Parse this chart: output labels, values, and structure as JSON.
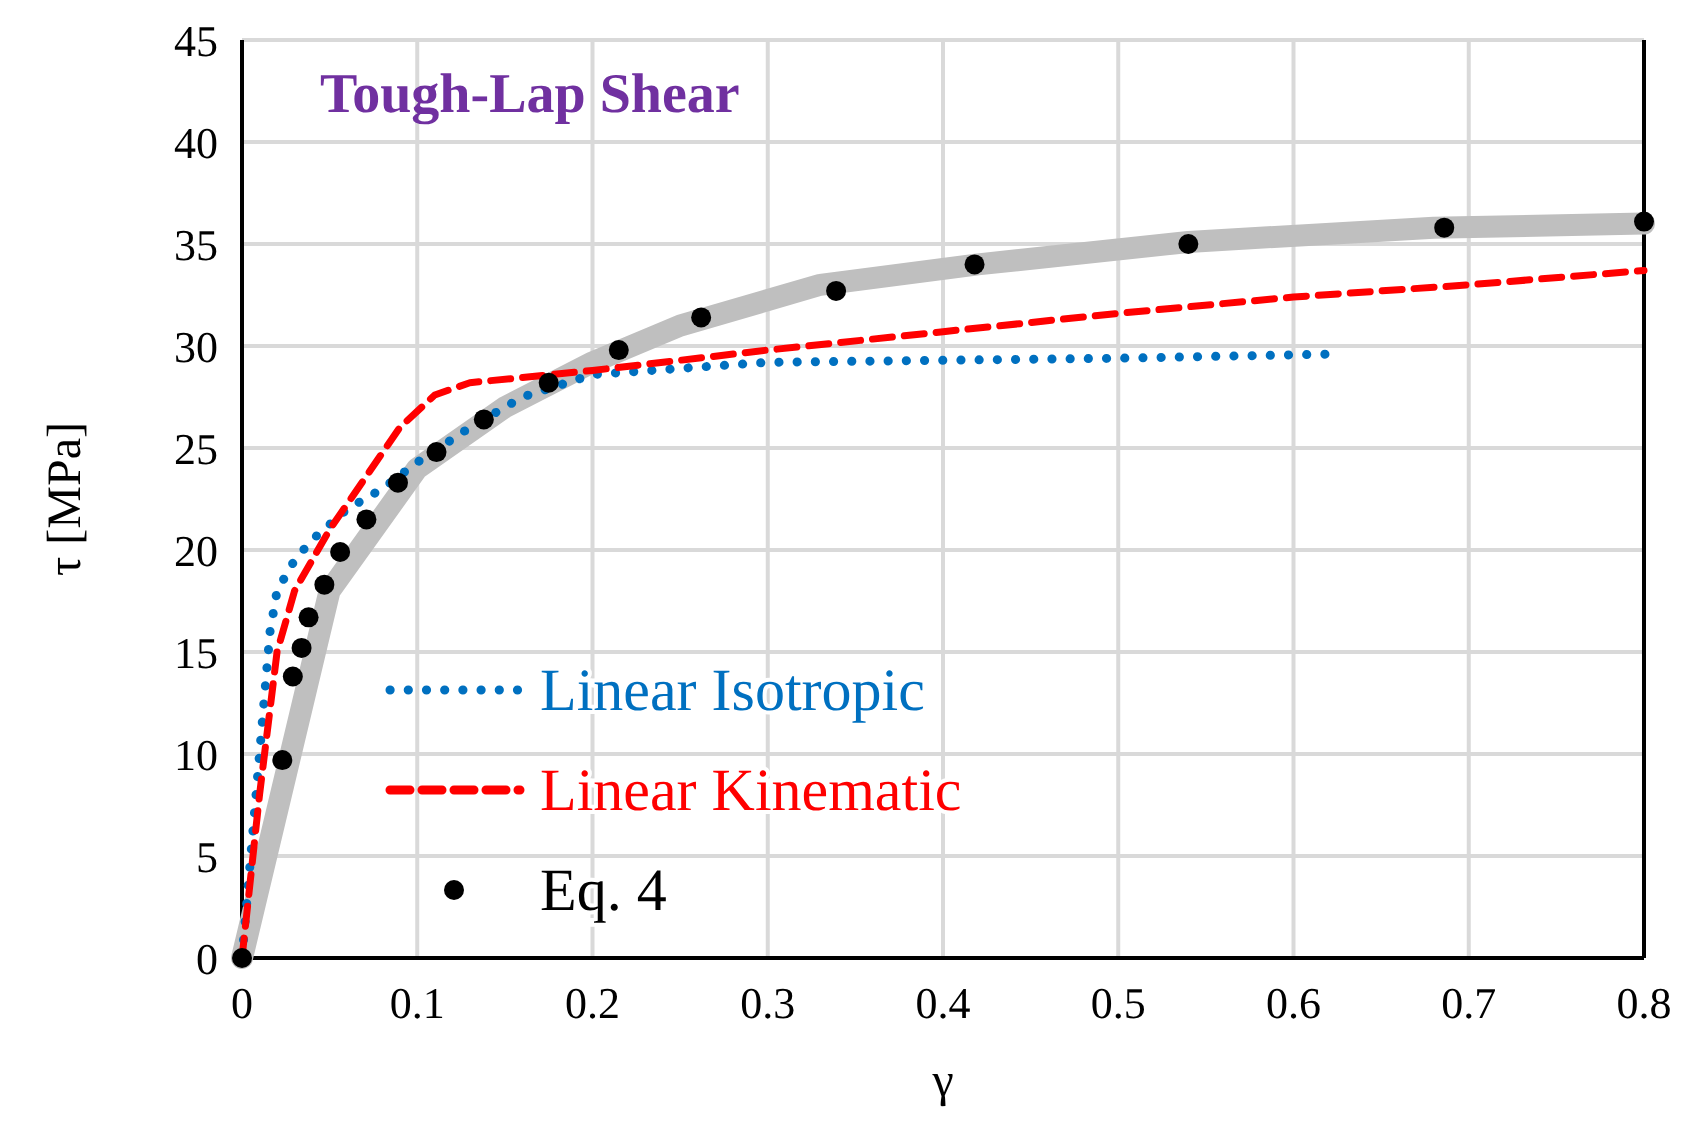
{
  "chart_data": {
    "type": "line",
    "title": "Tough-Lap Shear",
    "xlabel": "γ",
    "ylabel": "τ [MPa]",
    "xlim": [
      0,
      0.8
    ],
    "xticks": [
      0,
      0.1,
      0.2,
      0.3,
      0.4,
      0.5,
      0.6,
      0.7,
      0.8
    ],
    "ylim": [
      0,
      45
    ],
    "yticks": [
      0,
      5,
      10,
      15,
      20,
      25,
      30,
      35,
      40,
      45
    ],
    "grid": true,
    "legend": "bottom",
    "series": [
      {
        "color": "#bfbfbf",
        "line_style": "solid",
        "x": [
          0,
          0.05,
          0.1,
          0.15,
          0.2,
          0.25,
          0.33,
          0.42,
          0.54,
          0.68,
          0.8
        ],
        "values": [
          0,
          18,
          24,
          27,
          29.2,
          31,
          33,
          34,
          35.1,
          35.8,
          36
        ]
      },
      {
        "name": "Linear Isotropic",
        "color": "#0070c0",
        "line_style": "dotted",
        "x": [
          0,
          0.005,
          0.012,
          0.016,
          0.02,
          0.03,
          0.04,
          0.06,
          0.08,
          0.1,
          0.13,
          0.16,
          0.2,
          0.3,
          0.4,
          0.5,
          0.62
        ],
        "values": [
          0,
          5,
          12,
          16,
          18,
          19.5,
          20.5,
          22,
          23,
          24.3,
          26,
          27.5,
          28.6,
          29.2,
          29.3,
          29.4,
          29.6
        ]
      },
      {
        "name": "Linear Kinematic",
        "color": "#ff0000",
        "line_style": "dashed",
        "x": [
          0,
          0.01,
          0.02,
          0.03,
          0.05,
          0.07,
          0.09,
          0.11,
          0.13,
          0.2,
          0.3,
          0.4,
          0.5,
          0.6,
          0.7,
          0.8
        ],
        "values": [
          0,
          8,
          15,
          18,
          21,
          23.5,
          26,
          27.6,
          28.2,
          28.8,
          29.8,
          30.7,
          31.6,
          32.4,
          33,
          33.7
        ]
      },
      {
        "type": "scatter",
        "name": "Eq. 4",
        "color": "#000000",
        "marker": "circle",
        "x": [
          0,
          0.023,
          0.029,
          0.034,
          0.038,
          0.047,
          0.056,
          0.071,
          0.089,
          0.111,
          0.138,
          0.175,
          0.215,
          0.262,
          0.339,
          0.418,
          0.54,
          0.686,
          0.8
        ],
        "values": [
          0,
          9.7,
          13.8,
          15.2,
          16.7,
          18.3,
          19.9,
          21.5,
          23.3,
          24.8,
          26.4,
          28.2,
          29.8,
          31.4,
          32.7,
          34,
          35,
          35.8,
          36.1
        ]
      }
    ]
  }
}
